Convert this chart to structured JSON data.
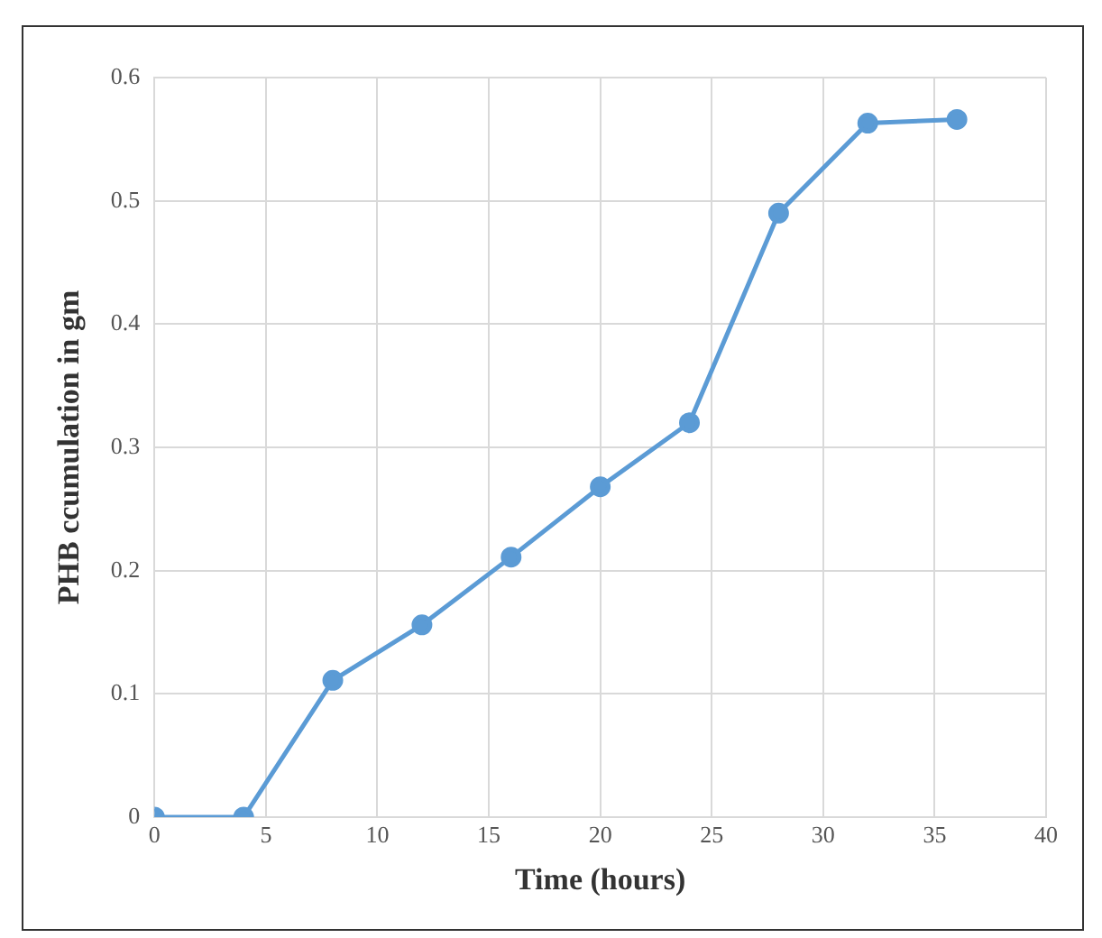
{
  "chart_data": {
    "type": "line",
    "xlabel": "Time (hours)",
    "ylabel": "PHB ccumulation in gm",
    "x": [
      0,
      4,
      8,
      12,
      16,
      20,
      24,
      28,
      32,
      36
    ],
    "series": [
      {
        "color": "#5b9bd5",
        "values": [
          0,
          0,
          0.111,
          0.156,
          0.211,
          0.268,
          0.32,
          0.49,
          0.563,
          0.566
        ]
      }
    ],
    "xlim": [
      0,
      40
    ],
    "xticks": [
      0,
      5,
      10,
      15,
      20,
      25,
      30,
      35,
      40
    ],
    "ylim": [
      0,
      0.6
    ],
    "yticks": [
      0,
      0.1,
      0.2,
      0.3,
      0.4,
      0.5,
      0.6
    ],
    "grid": true,
    "legend": false,
    "marker": "circle",
    "line_style": "solid"
  }
}
